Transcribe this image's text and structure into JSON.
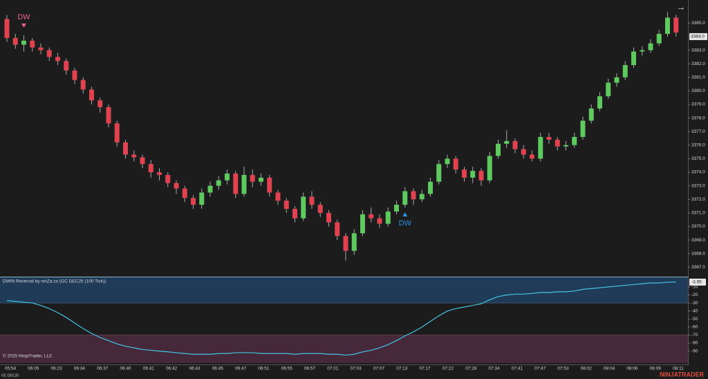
{
  "chart_data": [
    {
      "type": "candlestick",
      "up_color": "#5ec95e",
      "down_color": "#e0434f",
      "open": [
        3385.3,
        3383.9,
        3383.4,
        3383.7,
        3383.2,
        3383.0,
        3382.5,
        3382.2,
        3381.5,
        3380.8,
        3380.1,
        3379.3,
        3378.8,
        3377.6,
        3376.2,
        3375.3,
        3375.1,
        3374.6,
        3374.0,
        3373.8,
        3373.2,
        3372.8,
        3372.1,
        3371.6,
        3372.5,
        3373.0,
        3373.4,
        3373.9,
        3372.4,
        3373.8,
        3373.3,
        3373.6,
        3372.5,
        3371.9,
        3371.3,
        3370.6,
        3372.2,
        3371.6,
        3371.0,
        3370.3,
        3369.3,
        3368.2,
        3369.5,
        3370.9,
        3370.6,
        3370.2,
        3371.1,
        3371.6,
        3372.6,
        3372.0,
        3372.4,
        3373.3,
        3374.6,
        3375.0,
        3374.2,
        3373.6,
        3374.1,
        3373.4,
        3375.2,
        3376.1,
        3376.3,
        3375.7,
        3375.3,
        3375.0,
        3376.6,
        3376.4,
        3375.9,
        3376.0,
        3376.6,
        3377.8,
        3378.7,
        3379.6,
        3380.6,
        3381.0,
        3381.9,
        3382.9,
        3383.0,
        3383.5,
        3384.2,
        3385.4
      ],
      "high": [
        3385.6,
        3384.2,
        3384.1,
        3383.9,
        3383.5,
        3383.2,
        3382.8,
        3382.4,
        3381.7,
        3381.0,
        3380.3,
        3379.5,
        3379.0,
        3377.8,
        3376.4,
        3375.6,
        3375.3,
        3374.9,
        3374.3,
        3374.0,
        3373.4,
        3373.0,
        3372.3,
        3372.8,
        3373.3,
        3373.7,
        3374.2,
        3374.1,
        3374.4,
        3374.2,
        3373.9,
        3373.8,
        3372.7,
        3372.1,
        3371.5,
        3372.5,
        3372.6,
        3371.8,
        3371.2,
        3370.5,
        3369.5,
        3369.8,
        3371.2,
        3371.4,
        3370.9,
        3371.4,
        3371.9,
        3372.9,
        3372.8,
        3372.7,
        3373.6,
        3374.9,
        3375.3,
        3375.2,
        3374.4,
        3374.4,
        3374.3,
        3375.5,
        3376.4,
        3377.1,
        3376.5,
        3376.0,
        3375.6,
        3376.9,
        3376.9,
        3376.6,
        3376.3,
        3376.9,
        3378.1,
        3379.0,
        3379.9,
        3380.9,
        3381.3,
        3382.2,
        3383.2,
        3383.3,
        3383.8,
        3384.5,
        3385.8,
        3385.6
      ],
      "low": [
        3383.6,
        3383.1,
        3382.9,
        3382.9,
        3382.7,
        3382.2,
        3381.9,
        3381.2,
        3380.5,
        3379.8,
        3379.0,
        3378.4,
        3377.3,
        3375.9,
        3375.0,
        3374.8,
        3374.3,
        3373.6,
        3373.4,
        3372.9,
        3372.4,
        3371.8,
        3371.3,
        3371.3,
        3372.2,
        3372.7,
        3373.1,
        3372.1,
        3372.2,
        3372.9,
        3373.0,
        3372.2,
        3371.6,
        3371.0,
        3370.3,
        3370.4,
        3371.3,
        3370.7,
        3370.0,
        3369.0,
        3367.5,
        3367.9,
        3369.3,
        3370.3,
        3369.9,
        3370.0,
        3370.9,
        3371.4,
        3371.6,
        3371.8,
        3372.2,
        3373.1,
        3374.3,
        3373.9,
        3373.3,
        3373.2,
        3373.0,
        3373.2,
        3375.0,
        3375.8,
        3375.4,
        3375.0,
        3374.8,
        3374.8,
        3376.1,
        3375.6,
        3375.6,
        3375.8,
        3376.4,
        3377.6,
        3378.5,
        3379.4,
        3380.3,
        3380.8,
        3381.7,
        3382.6,
        3382.8,
        3383.3,
        3384.0,
        3384.0
      ],
      "close": [
        3383.9,
        3383.4,
        3383.7,
        3383.2,
        3383.0,
        3382.5,
        3382.2,
        3381.5,
        3380.8,
        3380.1,
        3379.3,
        3378.8,
        3377.6,
        3376.2,
        3375.3,
        3375.1,
        3374.6,
        3374.0,
        3373.8,
        3373.2,
        3372.8,
        3372.1,
        3371.6,
        3372.5,
        3373.0,
        3373.4,
        3373.9,
        3372.4,
        3373.8,
        3373.3,
        3373.6,
        3372.5,
        3371.9,
        3371.3,
        3370.6,
        3372.2,
        3371.6,
        3371.0,
        3370.3,
        3369.3,
        3368.2,
        3369.5,
        3370.9,
        3370.6,
        3370.2,
        3371.1,
        3371.6,
        3372.6,
        3372.0,
        3372.4,
        3373.3,
        3374.6,
        3375.0,
        3374.2,
        3373.6,
        3374.1,
        3373.4,
        3375.2,
        3376.1,
        3376.3,
        3375.7,
        3375.3,
        3375.0,
        3376.6,
        3376.4,
        3375.9,
        3376.0,
        3376.6,
        3377.8,
        3378.7,
        3379.6,
        3380.6,
        3381.0,
        3381.9,
        3382.9,
        3383.0,
        3383.5,
        3384.2,
        3385.4,
        3384.3
      ],
      "ylim": [
        3366.3,
        3386.7
      ],
      "yticks": [
        {
          "value": 3367,
          "label": "3367.0"
        },
        {
          "value": 3368,
          "label": "3368.0"
        },
        {
          "value": 3369,
          "label": "3369.0"
        },
        {
          "value": 3370,
          "label": "3370.0"
        },
        {
          "value": 3371,
          "label": "3371.0"
        },
        {
          "value": 3372,
          "label": "3372.0"
        },
        {
          "value": 3373,
          "label": "3373.0"
        },
        {
          "value": 3374,
          "label": "3374.0"
        },
        {
          "value": 3375,
          "label": "3375.0"
        },
        {
          "value": 3376,
          "label": "3376.0"
        },
        {
          "value": 3377,
          "label": "3377.0"
        },
        {
          "value": 3378,
          "label": "3378.0"
        },
        {
          "value": 3379,
          "label": "3379.0"
        },
        {
          "value": 3380,
          "label": "3380.0"
        },
        {
          "value": 3381,
          "label": "3381.0"
        },
        {
          "value": 3382,
          "label": "3382.0"
        },
        {
          "value": 3383,
          "label": "3383.0"
        },
        {
          "value": 3385,
          "label": "3385.0"
        }
      ],
      "price_marker": {
        "value": 3384,
        "label": "3384.0"
      },
      "signals": [
        {
          "label": "DW",
          "index": 2,
          "direction": "down",
          "color": "#e8638f"
        },
        {
          "label": "DW",
          "index": 47,
          "direction": "up",
          "color": "#2b8fe0"
        }
      ],
      "time_labels": [
        "05:54",
        "06:05",
        "06:23",
        "06:34",
        "06:37",
        "06:40",
        "06:41",
        "06:42",
        "06:43",
        "06:45",
        "06:47",
        "06:51",
        "06:55",
        "06:57",
        "07:01",
        "07:03",
        "07:07",
        "07:13",
        "07:17",
        "07:22",
        "07:28",
        "07:34",
        "07:41",
        "07:47",
        "07:53",
        "08:02",
        "08:04",
        "08:06",
        "08:09",
        "08:11"
      ]
    },
    {
      "type": "line",
      "title": "DWIN Reversal by ninZa.co (GC DEC25 (100 Tick))",
      "color": "#45c4e6",
      "values": [
        -27,
        -28,
        -29,
        -30,
        -33,
        -37,
        -42,
        -48,
        -55,
        -62,
        -68,
        -73,
        -77,
        -81,
        -84,
        -86,
        -88,
        -89,
        -90,
        -91,
        -92,
        -93,
        -94,
        -94,
        -94,
        -93,
        -93,
        -92,
        -92,
        -92,
        -93,
        -93,
        -93,
        -93,
        -94,
        -93,
        -93,
        -93,
        -94,
        -94,
        -95,
        -94,
        -91,
        -89,
        -86,
        -82,
        -77,
        -71,
        -66,
        -60,
        -53,
        -46,
        -40,
        -37,
        -35,
        -33,
        -31,
        -26,
        -22,
        -20,
        -19,
        -19,
        -18,
        -17,
        -17,
        -16,
        -16,
        -15,
        -13,
        -12,
        -11,
        -10,
        -9,
        -8,
        -7,
        -6,
        -5,
        -5,
        -4,
        -3.95
      ],
      "ylim": [
        -105,
        2
      ],
      "yticks": [
        -10,
        -20,
        -30,
        -40,
        -50,
        -60,
        -70,
        -80,
        -90
      ],
      "overbought": -30,
      "overbought_color": "#1f3b57",
      "oversold": -70,
      "oversold_color": "#45293a"
    }
  ],
  "footer": {
    "copyright": "© 2025 NinjaTrader, LLC",
    "instrument": "GC DEC25",
    "brand": "NINJATRADER"
  }
}
